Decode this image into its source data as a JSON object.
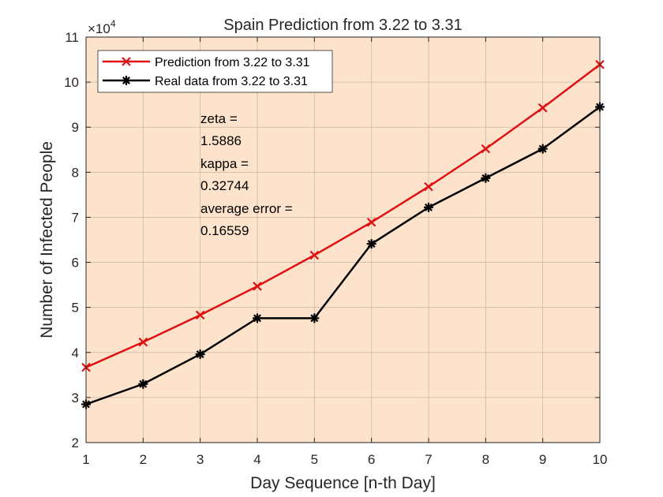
{
  "chart_data": {
    "type": "line",
    "title": "Spain Prediction from 3.22 to 3.31",
    "xlabel": "Day Sequence [n-th Day]",
    "ylabel": "Number of Infected People",
    "y_multiplier": "×10",
    "y_multiplier_exp": "4",
    "xlim": [
      1,
      10
    ],
    "ylim": [
      2,
      11
    ],
    "x_ticks": [
      1,
      2,
      3,
      4,
      5,
      6,
      7,
      8,
      9,
      10
    ],
    "y_ticks": [
      2,
      3,
      4,
      5,
      6,
      7,
      8,
      9,
      10,
      11
    ],
    "x": [
      1,
      2,
      3,
      4,
      5,
      6,
      7,
      8,
      9,
      10
    ],
    "grid": true,
    "background_color": "#fde3cc",
    "legend_position": "top-left",
    "series": [
      {
        "name": "Prediction from 3.22 to 3.31",
        "color": "#e01010",
        "marker": "x",
        "values": [
          3.67,
          4.23,
          4.83,
          5.47,
          6.16,
          6.89,
          7.68,
          8.52,
          9.43,
          10.39
        ]
      },
      {
        "name": "Real data from 3.22 to 3.31",
        "color": "#000000",
        "marker": "asterisk",
        "values": [
          2.85,
          3.3,
          3.96,
          4.76,
          4.76,
          6.41,
          7.22,
          7.87,
          8.52,
          9.45
        ]
      }
    ],
    "annotation": [
      "zeta =",
      "1.5886",
      "kappa =",
      "0.32744",
      "average error =",
      "0.16559"
    ]
  }
}
